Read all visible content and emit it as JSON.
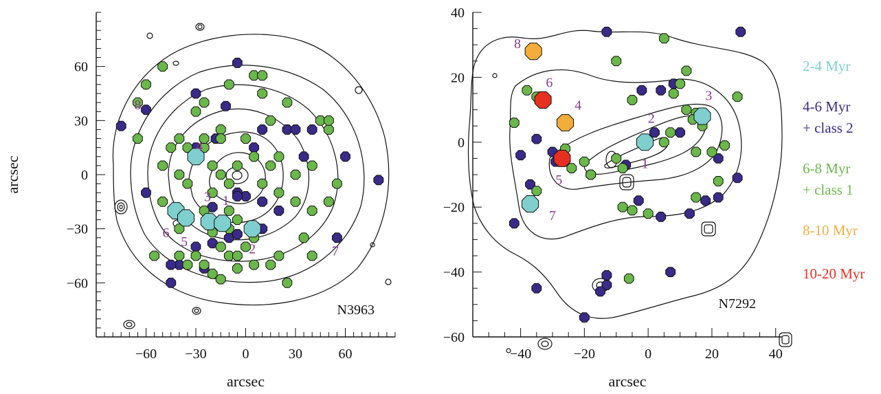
{
  "chart_data": [
    {
      "type": "scatter",
      "panel_label": "N3963",
      "xlabel": "arcsec",
      "ylabel": "arcsec",
      "xlim": [
        -90,
        90
      ],
      "ylim": [
        -90,
        90
      ],
      "xticks": [
        -60,
        -30,
        0,
        30,
        60
      ],
      "yticks": [
        -60,
        -30,
        0,
        30,
        60
      ],
      "xtick_labels": [
        "−60",
        "−30",
        "0",
        "30",
        "60"
      ],
      "ytick_labels": [
        "−60",
        "−30",
        "0",
        "30",
        "60"
      ],
      "groups": [
        {
          "age": "2-4 Myr",
          "color": "#7fcfcf",
          "size": "large",
          "points": [
            [
              -30,
              10
            ],
            [
              -42,
              -20
            ],
            [
              -36,
              -24
            ],
            [
              -22,
              -26
            ],
            [
              -14,
              -27
            ],
            [
              4,
              -30
            ]
          ]
        },
        {
          "age": "6-8 Myr",
          "color": "#f0a030",
          "size": "large",
          "points": []
        },
        {
          "age": "4-6 Myr + class 2",
          "color": "#3a2a8a",
          "size": "small",
          "points": [
            [
              -75,
              27
            ],
            [
              -60,
              36
            ],
            [
              -12,
              38
            ],
            [
              -5,
              62
            ],
            [
              -30,
              15
            ],
            [
              -18,
              20
            ],
            [
              -30,
              10
            ],
            [
              -20,
              -18
            ],
            [
              -5,
              -10
            ],
            [
              -30,
              -40
            ],
            [
              -10,
              -35
            ],
            [
              -20,
              -38
            ],
            [
              -5,
              -33
            ],
            [
              10,
              -15
            ],
            [
              20,
              -20
            ],
            [
              5,
              15
            ],
            [
              10,
              25
            ],
            [
              25,
              25
            ],
            [
              30,
              25
            ],
            [
              35,
              10
            ],
            [
              40,
              25
            ],
            [
              60,
              10
            ],
            [
              80,
              -3
            ],
            [
              55,
              -35
            ],
            [
              -40,
              -50
            ],
            [
              -45,
              -50
            ],
            [
              -25,
              -52
            ],
            [
              0,
              -12
            ],
            [
              -5,
              -12
            ],
            [
              10,
              -30
            ],
            [
              -45,
              -60
            ],
            [
              -60,
              -10
            ],
            [
              -30,
              45
            ]
          ]
        },
        {
          "age": "6-8 Myr + class 1",
          "color": "#6ab84a",
          "size": "small",
          "points": [
            [
              -60,
              50
            ],
            [
              -65,
              20
            ],
            [
              -50,
              -15
            ],
            [
              -35,
              -25
            ],
            [
              -55,
              -45
            ],
            [
              -20,
              -55
            ],
            [
              -15,
              -58
            ],
            [
              -25,
              -50
            ],
            [
              -15,
              -40
            ],
            [
              -10,
              -45
            ],
            [
              -5,
              -45
            ],
            [
              0,
              -40
            ],
            [
              5,
              -35
            ],
            [
              -5,
              -25
            ],
            [
              10,
              -5
            ],
            [
              20,
              -10
            ],
            [
              30,
              -15
            ],
            [
              40,
              -20
            ],
            [
              50,
              -15
            ],
            [
              55,
              -5
            ],
            [
              50,
              25
            ],
            [
              40,
              5
            ],
            [
              30,
              0
            ],
            [
              20,
              10
            ],
            [
              15,
              5
            ],
            [
              15,
              30
            ],
            [
              25,
              40
            ],
            [
              10,
              45
            ],
            [
              5,
              55
            ],
            [
              -25,
              40
            ],
            [
              -30,
              35
            ],
            [
              -40,
              20
            ],
            [
              -45,
              15
            ],
            [
              -50,
              5
            ],
            [
              -40,
              0
            ],
            [
              -35,
              -5
            ],
            [
              -35,
              15
            ],
            [
              -25,
              15
            ],
            [
              -20,
              5
            ],
            [
              -15,
              0
            ],
            [
              -10,
              -5
            ],
            [
              -5,
              5
            ],
            [
              -15,
              25
            ],
            [
              -15,
              20
            ],
            [
              -25,
              20
            ],
            [
              0,
              20
            ],
            [
              5,
              10
            ],
            [
              -10,
              -20
            ],
            [
              -20,
              -10
            ],
            [
              -25,
              -20
            ],
            [
              35,
              -35
            ],
            [
              40,
              -45
            ],
            [
              25,
              -60
            ],
            [
              15,
              -50
            ],
            [
              -40,
              -45
            ],
            [
              -30,
              -45
            ],
            [
              -35,
              -50
            ],
            [
              -5,
              -52
            ],
            [
              20,
              -45
            ],
            [
              45,
              30
            ],
            [
              50,
              30
            ],
            [
              5,
              -50
            ],
            [
              -65,
              40
            ],
            [
              -50,
              60
            ],
            [
              -10,
              50
            ],
            [
              10,
              55
            ],
            [
              -40,
              -30
            ],
            [
              -10,
              -30
            ],
            [
              -20,
              -32
            ]
          ]
        }
      ],
      "annotations": [
        {
          "text": "1",
          "x": -12,
          "y": -15
        },
        {
          "text": "2",
          "x": 4,
          "y": -42
        },
        {
          "text": "3",
          "x": -23,
          "y": -13
        },
        {
          "text": "4",
          "x": -28,
          "y": 15
        },
        {
          "text": "5",
          "x": -37,
          "y": -38
        },
        {
          "text": "6",
          "x": -48,
          "y": -33
        },
        {
          "text": "7",
          "x": 54,
          "y": -43
        },
        {
          "text": "8",
          "x": -65,
          "y": 38
        }
      ]
    },
    {
      "type": "scatter",
      "panel_label": "N7292",
      "xlabel": "arcsec",
      "ylabel": "",
      "xlim": [
        -55,
        42
      ],
      "ylim": [
        -60,
        40
      ],
      "xticks": [
        -40,
        -20,
        0,
        20,
        40
      ],
      "yticks": [
        -60,
        -40,
        -20,
        0,
        20,
        40
      ],
      "xtick_labels": [
        "−40",
        "−20",
        "0",
        "20",
        "40"
      ],
      "ytick_labels": [
        "−60",
        "−40",
        "−20",
        "0",
        "20",
        "40"
      ],
      "groups": [
        {
          "age": "2-4 Myr",
          "color": "#7fcfcf",
          "size": "large",
          "points": [
            [
              -37,
              -19
            ],
            [
              -1,
              0
            ],
            [
              17,
              8
            ]
          ]
        },
        {
          "age": "8-10 Myr",
          "color": "#f4ac3a",
          "size": "large",
          "points": [
            [
              -36,
              28
            ],
            [
              -26,
              6
            ]
          ]
        },
        {
          "age": "10-20 Myr",
          "color": "#e83020",
          "size": "large",
          "points": [
            [
              -33,
              13
            ],
            [
              -27,
              -5
            ]
          ]
        },
        {
          "age": "4-6 Myr + class 2",
          "color": "#3a2a8a",
          "size": "small",
          "points": [
            [
              -13,
              34
            ],
            [
              29,
              34
            ],
            [
              -2,
              16
            ],
            [
              4,
              16
            ],
            [
              8,
              18
            ],
            [
              2,
              3
            ],
            [
              -35,
              1
            ],
            [
              -40,
              -4
            ],
            [
              -30,
              -3
            ],
            [
              -29,
              -6
            ],
            [
              -37,
              -13
            ],
            [
              -7,
              -7
            ],
            [
              -18,
              -10
            ],
            [
              -42,
              -25
            ],
            [
              4,
              -23
            ],
            [
              13,
              -22
            ],
            [
              18,
              -18
            ],
            [
              22,
              -17
            ],
            [
              28,
              -11
            ],
            [
              7,
              -40
            ],
            [
              -35,
              -45
            ],
            [
              -13,
              -41
            ],
            [
              -13,
              -44
            ],
            [
              -15,
              -46
            ],
            [
              -20,
              -54
            ],
            [
              22,
              -5
            ],
            [
              -3,
              -18
            ],
            [
              10,
              3
            ]
          ]
        },
        {
          "age": "6-8 Myr + class 1",
          "color": "#6ab84a",
          "size": "small",
          "points": [
            [
              -42,
              6
            ],
            [
              -35,
              14
            ],
            [
              -38,
              16
            ],
            [
              -10,
              25
            ],
            [
              5,
              32
            ],
            [
              10,
              18
            ],
            [
              12,
              22
            ],
            [
              -5,
              13
            ],
            [
              8,
              15
            ],
            [
              15,
              9
            ],
            [
              28,
              14
            ],
            [
              -26,
              -2
            ],
            [
              -24,
              -8
            ],
            [
              -20,
              -6
            ],
            [
              -18,
              -10
            ],
            [
              -10,
              -5
            ],
            [
              -8,
              -8
            ],
            [
              5,
              0
            ],
            [
              7,
              3
            ],
            [
              12,
              10
            ],
            [
              14,
              7
            ],
            [
              17,
              5
            ],
            [
              20,
              -3
            ],
            [
              24,
              -1
            ],
            [
              15,
              -3
            ],
            [
              -35,
              -15
            ],
            [
              -8,
              -20
            ],
            [
              -5,
              -21
            ],
            [
              0,
              -22
            ],
            [
              15,
              -17
            ],
            [
              22,
              -12
            ],
            [
              -6,
              -42
            ]
          ]
        }
      ],
      "annotations": [
        {
          "text": "1",
          "x": -1,
          "y": -7
        },
        {
          "text": "2",
          "x": 1,
          "y": 7
        },
        {
          "text": "3",
          "x": 19,
          "y": 14
        },
        {
          "text": "4",
          "x": -22,
          "y": 11
        },
        {
          "text": "5",
          "x": -28,
          "y": -12
        },
        {
          "text": "6",
          "x": -31,
          "y": 18
        },
        {
          "text": "7",
          "x": -30,
          "y": -23
        },
        {
          "text": "8",
          "x": -41,
          "y": 30
        }
      ]
    }
  ],
  "legend": [
    {
      "lines": [
        "2-4 Myr"
      ],
      "color": "#7fcfcf"
    },
    {
      "lines": [
        "4-6 Myr",
        "+ class 2"
      ],
      "color": "#3a2a8a"
    },
    {
      "lines": [
        "6-8 Myr",
        "+ class 1"
      ],
      "color": "#6ab84a"
    },
    {
      "lines": [
        "8-10 Myr"
      ],
      "color": "#f4ac3a"
    },
    {
      "lines": [
        "10-20 Myr"
      ],
      "color": "#e83020"
    }
  ],
  "annotation_color": "#8a3a8a"
}
